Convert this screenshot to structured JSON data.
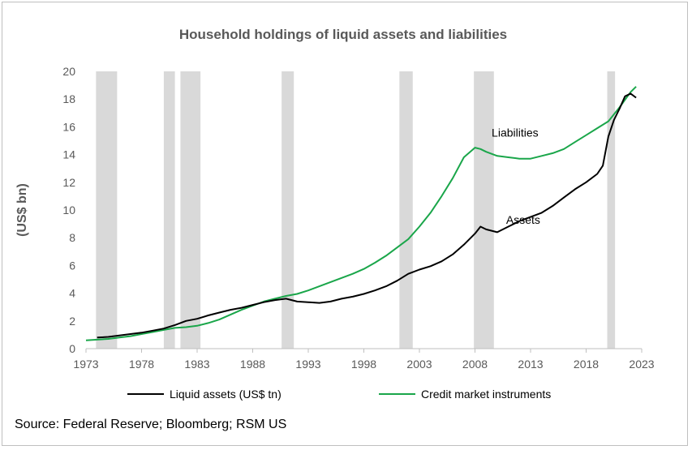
{
  "chart_data": {
    "type": "line",
    "title": "Household holdings of liquid assets and liabilities",
    "ylabel": "(US$ bn)",
    "xlabel": "",
    "xlim": [
      1973,
      2023
    ],
    "ylim": [
      0,
      20
    ],
    "xticks": [
      "1973",
      "1978",
      "1983",
      "1988",
      "1993",
      "1998",
      "2003",
      "2008",
      "2013",
      "2018",
      "2023"
    ],
    "yticks": [
      "0",
      "2",
      "4",
      "6",
      "8",
      "10",
      "12",
      "14",
      "16",
      "18",
      "20"
    ],
    "grid": false,
    "legend_position": "bottom",
    "recession_bands": [
      [
        1973.9,
        1975.8
      ],
      [
        1980.0,
        1981.0
      ],
      [
        1981.5,
        1983.3
      ],
      [
        1990.6,
        1991.7
      ],
      [
        2001.2,
        2002.4
      ],
      [
        2007.9,
        2009.7
      ],
      [
        2019.9,
        2020.6
      ]
    ],
    "series": [
      {
        "name": "Liquid assets (US$ tn)",
        "color": "#000000",
        "x": [
          1974,
          1975,
          1976,
          1977,
          1978,
          1979,
          1980,
          1981,
          1982,
          1983,
          1984,
          1985,
          1986,
          1987,
          1988,
          1989,
          1990,
          1991,
          1992,
          1993,
          1994,
          1995,
          1996,
          1997,
          1998,
          1999,
          2000,
          2001,
          2002,
          2003,
          2004,
          2005,
          2006,
          2007,
          2008,
          2008.5,
          2009,
          2010,
          2011,
          2012,
          2013,
          2014,
          2015,
          2016,
          2017,
          2018,
          2019,
          2019.5,
          2020,
          2020.5,
          2021,
          2021.5,
          2022,
          2022.5
        ],
        "values": [
          0.8,
          0.85,
          0.95,
          1.05,
          1.15,
          1.3,
          1.45,
          1.7,
          2.0,
          2.15,
          2.4,
          2.6,
          2.8,
          2.95,
          3.15,
          3.35,
          3.5,
          3.6,
          3.4,
          3.35,
          3.3,
          3.4,
          3.6,
          3.75,
          3.95,
          4.2,
          4.5,
          4.9,
          5.4,
          5.7,
          5.95,
          6.3,
          6.8,
          7.5,
          8.3,
          8.8,
          8.6,
          8.4,
          8.8,
          9.2,
          9.5,
          9.8,
          10.3,
          10.9,
          11.5,
          12.0,
          12.6,
          13.2,
          15.3,
          16.5,
          17.3,
          18.2,
          18.4,
          18.1
        ]
      },
      {
        "name": "Credit market instruments",
        "color": "#1aa64a",
        "x": [
          1973,
          1974,
          1975,
          1976,
          1977,
          1978,
          1979,
          1980,
          1981,
          1982,
          1983,
          1984,
          1985,
          1986,
          1987,
          1988,
          1989,
          1990,
          1991,
          1992,
          1993,
          1994,
          1995,
          1996,
          1997,
          1998,
          1999,
          2000,
          2001,
          2002,
          2003,
          2004,
          2005,
          2006,
          2007,
          2008,
          2008.5,
          2009,
          2010,
          2011,
          2012,
          2013,
          2014,
          2015,
          2016,
          2017,
          2018,
          2019,
          2020,
          2021,
          2022,
          2022.5
        ],
        "values": [
          0.6,
          0.65,
          0.7,
          0.8,
          0.9,
          1.05,
          1.2,
          1.35,
          1.5,
          1.55,
          1.65,
          1.85,
          2.1,
          2.45,
          2.8,
          3.1,
          3.4,
          3.6,
          3.8,
          3.95,
          4.2,
          4.5,
          4.8,
          5.1,
          5.4,
          5.75,
          6.2,
          6.7,
          7.3,
          7.9,
          8.8,
          9.8,
          11.0,
          12.3,
          13.8,
          14.5,
          14.4,
          14.2,
          13.9,
          13.8,
          13.7,
          13.7,
          13.9,
          14.1,
          14.4,
          14.9,
          15.4,
          15.9,
          16.4,
          17.4,
          18.5,
          18.9
        ]
      }
    ],
    "annotations": [
      {
        "text": "Liabilities",
        "x": 2009.5,
        "y": 15.3
      },
      {
        "text": "Assets",
        "x": 2010.8,
        "y": 9.0
      }
    ]
  },
  "source_text": "Source: Federal Reserve; Bloomberg; RSM US"
}
